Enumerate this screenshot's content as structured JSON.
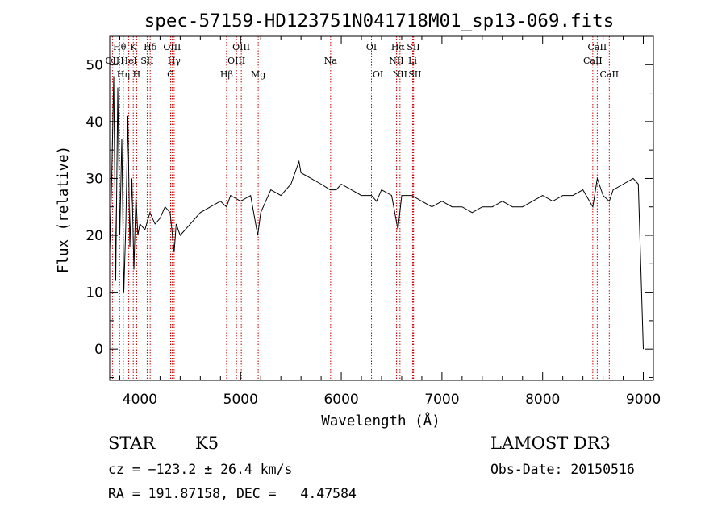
{
  "chart_data": {
    "type": "line",
    "title": "spec-57159-HD123751N041718M01_sp13-069.fits",
    "xlabel": "Wavelength (Å)",
    "ylabel": "Flux (relative)",
    "xlim": [
      3700,
      9100
    ],
    "ylim": [
      -5.5,
      55
    ],
    "xticks": [
      4000,
      5000,
      6000,
      7000,
      8000,
      9000
    ],
    "xtick_labels": [
      "4000",
      "5000",
      "6000",
      "7000",
      "8000",
      "9000"
    ],
    "yticks": [
      0,
      10,
      20,
      30,
      40,
      50
    ],
    "ytick_labels": [
      "0",
      "10",
      "20",
      "30",
      "40",
      "50"
    ],
    "series": [
      {
        "name": "flux",
        "x": [
          3700,
          3720,
          3740,
          3760,
          3780,
          3800,
          3820,
          3840,
          3860,
          3880,
          3900,
          3920,
          3940,
          3960,
          3980,
          4000,
          4050,
          4100,
          4150,
          4200,
          4250,
          4300,
          4340,
          4360,
          4400,
          4500,
          4600,
          4700,
          4800,
          4860,
          4900,
          5000,
          5100,
          5170,
          5200,
          5300,
          5400,
          5500,
          5580,
          5600,
          5700,
          5800,
          5890,
          5950,
          6000,
          6100,
          6200,
          6300,
          6350,
          6400,
          6500,
          6563,
          6600,
          6700,
          6800,
          6900,
          7000,
          7100,
          7200,
          7300,
          7400,
          7500,
          7600,
          7700,
          7800,
          7900,
          8000,
          8100,
          8200,
          8300,
          8400,
          8498,
          8542,
          8600,
          8662,
          8700,
          8800,
          8900,
          8950,
          9000
        ],
        "y": [
          17,
          30,
          48,
          12,
          46,
          20,
          37,
          10,
          22,
          41,
          18,
          30,
          14,
          27,
          20,
          22,
          21,
          24,
          22,
          23,
          25,
          24,
          17,
          22,
          20,
          22,
          24,
          25,
          26,
          25,
          27,
          26,
          27,
          20,
          24,
          28,
          27,
          29,
          33,
          31,
          30,
          29,
          28,
          28,
          29,
          28,
          27,
          27,
          26,
          28,
          27,
          21,
          27,
          27,
          26,
          25,
          26,
          25,
          25,
          24,
          25,
          25,
          26,
          25,
          25,
          26,
          27,
          26,
          27,
          27,
          28,
          25,
          30,
          27,
          26,
          28,
          29,
          30,
          29,
          0
        ]
      }
    ],
    "annotations": [
      {
        "label": "OII",
        "wavelength": 3727,
        "row": 2
      },
      {
        "label": "Hθ",
        "wavelength": 3798,
        "row": 1
      },
      {
        "label": "Hη",
        "wavelength": 3835,
        "row": 3
      },
      {
        "label": "HeI",
        "wavelength": 3889,
        "row": 2
      },
      {
        "label": "K",
        "wavelength": 3934,
        "row": 1
      },
      {
        "label": "H",
        "wavelength": 3968,
        "row": 3
      },
      {
        "label": "SII",
        "wavelength": 4072,
        "row": 2
      },
      {
        "label": "Hδ",
        "wavelength": 4102,
        "row": 1
      },
      {
        "label": "G",
        "wavelength": 4305,
        "row": 3
      },
      {
        "label": "OIII",
        "wavelength": 4320,
        "row": 1
      },
      {
        "label": "Hγ",
        "wavelength": 4340,
        "row": 2
      },
      {
        "label": "Hβ",
        "wavelength": 4861,
        "row": 3
      },
      {
        "label": "OIII",
        "wavelength": 4959,
        "row": 2
      },
      {
        "label": "OIII",
        "wavelength": 5007,
        "row": 1
      },
      {
        "label": "Mg",
        "wavelength": 5175,
        "row": 3
      },
      {
        "label": "Na",
        "wavelength": 5894,
        "row": 2
      },
      {
        "label": "OI",
        "wavelength": 6300,
        "row": 1
      },
      {
        "label": "OI",
        "wavelength": 6364,
        "row": 3
      },
      {
        "label": "NII",
        "wavelength": 6548,
        "row": 2
      },
      {
        "label": "Hα",
        "wavelength": 6563,
        "row": 1
      },
      {
        "label": "NII",
        "wavelength": 6583,
        "row": 3
      },
      {
        "label": "Li",
        "wavelength": 6708,
        "row": 2
      },
      {
        "label": "SII",
        "wavelength": 6716,
        "row": 1
      },
      {
        "label": "SII",
        "wavelength": 6731,
        "row": 3
      },
      {
        "label": "CaII",
        "wavelength": 8498,
        "row": 2
      },
      {
        "label": "CaII",
        "wavelength": 8542,
        "row": 1
      },
      {
        "label": "CaII",
        "wavelength": 8662,
        "row": 3
      }
    ]
  },
  "info": {
    "class": "STAR",
    "subclass": "K5",
    "survey": "LAMOST DR3",
    "cz": "cz = −123.2 ± 26.4 km/s",
    "obs_date": "Obs-Date: 20150516",
    "coords": "RA = 191.87158, DEC =   4.47584"
  }
}
